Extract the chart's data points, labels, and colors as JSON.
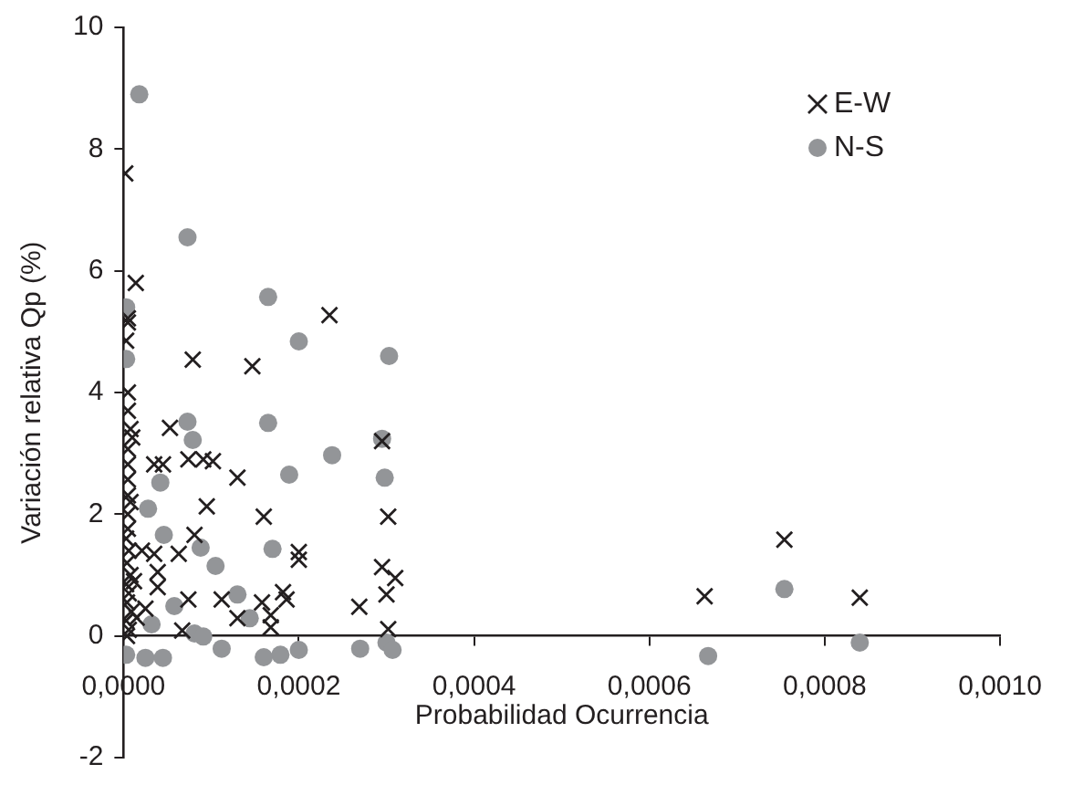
{
  "chart_data": {
    "type": "scatter",
    "xlabel": "Probabilidad Ocurrencia",
    "ylabel": "Variación relativa Qp (%)",
    "xlim": [
      0,
      0.001
    ],
    "ylim": [
      -2,
      10
    ],
    "xticks": [
      {
        "value": 0,
        "label": "0,0000"
      },
      {
        "value": 0.0002,
        "label": "0,0002"
      },
      {
        "value": 0.0004,
        "label": "0,0004"
      },
      {
        "value": 0.0006,
        "label": "0,0006"
      },
      {
        "value": 0.0008,
        "label": "0,0008"
      },
      {
        "value": 0.001,
        "label": "0,0010"
      }
    ],
    "yticks": [
      -2,
      0,
      2,
      4,
      6,
      8,
      10
    ],
    "grid": false,
    "legend": "top right",
    "series": [
      {
        "name": "E-W",
        "color": "#231f20",
        "marker": "cross",
        "x": [
          2e-06,
          1.4e-05,
          5e-06,
          5e-06,
          3e-06,
          7.9e-05,
          0.000147,
          0.000235,
          5e-06,
          5e-06,
          5.3e-05,
          8e-06,
          1e-05,
          5e-06,
          3.5e-05,
          4.5e-05,
          7.4e-05,
          9.1e-05,
          0.000102,
          5e-06,
          5e-06,
          0.00013,
          5e-06,
          8e-06,
          9.5e-05,
          5e-06,
          0.00016,
          0.000302,
          0.000295,
          5e-06,
          8.1e-05,
          2.1e-05,
          3.5e-05,
          6.3e-05,
          0.0002,
          0.0002,
          3.9e-05,
          0.000295,
          0.00031,
          3.9e-05,
          7.4e-05,
          0.000112,
          0.000158,
          0.000182,
          0.000186,
          0.0003,
          2.5e-05,
          0.00013,
          6.7e-05,
          0.000168,
          0.000168,
          0.000269,
          0.000302,
          0.000663,
          0.000754,
          0.00084,
          3e-06,
          6e-06,
          4e-06,
          8e-06,
          3e-06,
          6e-06,
          4e-06,
          9e-06,
          3e-06,
          6e-06,
          4e-06,
          1.2e-05,
          1.5e-05
        ],
        "values": [
          7.6,
          5.8,
          5.22,
          5.15,
          4.85,
          4.54,
          4.43,
          5.27,
          4.0,
          3.7,
          3.42,
          3.4,
          3.26,
          3.07,
          2.82,
          2.82,
          2.9,
          2.9,
          2.87,
          2.82,
          2.57,
          2.6,
          2.31,
          2.2,
          2.13,
          2.0,
          1.96,
          1.96,
          3.2,
          1.76,
          1.66,
          1.4,
          1.35,
          1.35,
          1.38,
          1.25,
          1.05,
          1.13,
          0.95,
          0.8,
          0.6,
          0.6,
          0.55,
          0.72,
          0.6,
          0.68,
          0.45,
          0.29,
          0.09,
          0.14,
          0.34,
          0.48,
          0.11,
          0.65,
          1.58,
          0.63,
          1.6,
          1.4,
          1.2,
          1.0,
          0.85,
          0.7,
          0.55,
          0.4,
          0.25,
          0.1,
          0.0,
          0.9,
          0.3
        ]
      },
      {
        "name": "N-S",
        "color": "#939598",
        "marker": "circle",
        "x": [
          1.8e-05,
          7.3e-05,
          0.000165,
          3e-06,
          0.0002,
          0.000303,
          3e-06,
          7.3e-05,
          7.9e-05,
          0.000165,
          0.000295,
          0.000238,
          0.000189,
          0.000298,
          4.2e-05,
          2.8e-05,
          4.6e-05,
          8.8e-05,
          0.00017,
          0.000105,
          0.00013,
          5.8e-05,
          0.000144,
          3.2e-05,
          8.1e-05,
          9.1e-05,
          0.000112,
          3e-06,
          2.5e-05,
          4.5e-05,
          0.000179,
          0.00016,
          0.0002,
          0.00027,
          0.0003,
          0.000307,
          0.000667,
          0.000754,
          0.00084
        ],
        "values": [
          8.9,
          6.55,
          5.57,
          5.4,
          4.84,
          4.6,
          4.55,
          3.52,
          3.22,
          3.5,
          3.24,
          2.97,
          2.65,
          2.6,
          2.52,
          2.09,
          1.66,
          1.45,
          1.43,
          1.15,
          0.68,
          0.49,
          0.29,
          0.19,
          0.04,
          -0.01,
          -0.21,
          -0.31,
          -0.36,
          -0.36,
          -0.31,
          -0.35,
          -0.23,
          -0.21,
          -0.11,
          -0.23,
          -0.33,
          0.77,
          -0.11
        ]
      }
    ]
  }
}
